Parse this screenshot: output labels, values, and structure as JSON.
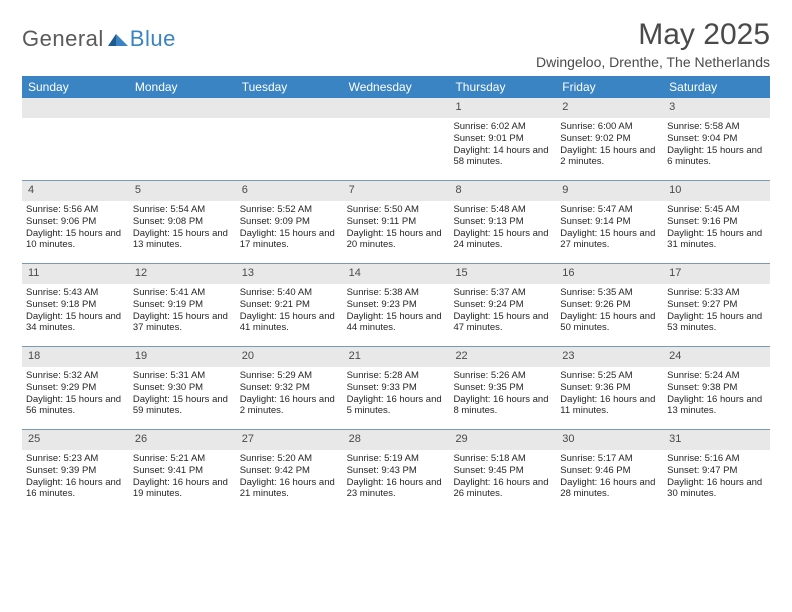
{
  "logo": {
    "word1": "General",
    "word2": "Blue"
  },
  "title": "May 2025",
  "location": "Dwingeloo, Drenthe, The Netherlands",
  "colors": {
    "accent": "#3a84c3",
    "header_text": "#ffffff",
    "daynum_bg": "#e8e8e8",
    "grid_border": "#7a99b3",
    "body_text": "#262626",
    "title_text": "#4a4a4a"
  },
  "dow": [
    "Sunday",
    "Monday",
    "Tuesday",
    "Wednesday",
    "Thursday",
    "Friday",
    "Saturday"
  ],
  "weeks": [
    [
      {
        "n": "",
        "empty": true
      },
      {
        "n": "",
        "empty": true
      },
      {
        "n": "",
        "empty": true
      },
      {
        "n": "",
        "empty": true
      },
      {
        "n": "1",
        "sunrise": "6:02 AM",
        "sunset": "9:01 PM",
        "daylight": "14 hours and 58 minutes."
      },
      {
        "n": "2",
        "sunrise": "6:00 AM",
        "sunset": "9:02 PM",
        "daylight": "15 hours and 2 minutes."
      },
      {
        "n": "3",
        "sunrise": "5:58 AM",
        "sunset": "9:04 PM",
        "daylight": "15 hours and 6 minutes."
      }
    ],
    [
      {
        "n": "4",
        "sunrise": "5:56 AM",
        "sunset": "9:06 PM",
        "daylight": "15 hours and 10 minutes."
      },
      {
        "n": "5",
        "sunrise": "5:54 AM",
        "sunset": "9:08 PM",
        "daylight": "15 hours and 13 minutes."
      },
      {
        "n": "6",
        "sunrise": "5:52 AM",
        "sunset": "9:09 PM",
        "daylight": "15 hours and 17 minutes."
      },
      {
        "n": "7",
        "sunrise": "5:50 AM",
        "sunset": "9:11 PM",
        "daylight": "15 hours and 20 minutes."
      },
      {
        "n": "8",
        "sunrise": "5:48 AM",
        "sunset": "9:13 PM",
        "daylight": "15 hours and 24 minutes."
      },
      {
        "n": "9",
        "sunrise": "5:47 AM",
        "sunset": "9:14 PM",
        "daylight": "15 hours and 27 minutes."
      },
      {
        "n": "10",
        "sunrise": "5:45 AM",
        "sunset": "9:16 PM",
        "daylight": "15 hours and 31 minutes."
      }
    ],
    [
      {
        "n": "11",
        "sunrise": "5:43 AM",
        "sunset": "9:18 PM",
        "daylight": "15 hours and 34 minutes."
      },
      {
        "n": "12",
        "sunrise": "5:41 AM",
        "sunset": "9:19 PM",
        "daylight": "15 hours and 37 minutes."
      },
      {
        "n": "13",
        "sunrise": "5:40 AM",
        "sunset": "9:21 PM",
        "daylight": "15 hours and 41 minutes."
      },
      {
        "n": "14",
        "sunrise": "5:38 AM",
        "sunset": "9:23 PM",
        "daylight": "15 hours and 44 minutes."
      },
      {
        "n": "15",
        "sunrise": "5:37 AM",
        "sunset": "9:24 PM",
        "daylight": "15 hours and 47 minutes."
      },
      {
        "n": "16",
        "sunrise": "5:35 AM",
        "sunset": "9:26 PM",
        "daylight": "15 hours and 50 minutes."
      },
      {
        "n": "17",
        "sunrise": "5:33 AM",
        "sunset": "9:27 PM",
        "daylight": "15 hours and 53 minutes."
      }
    ],
    [
      {
        "n": "18",
        "sunrise": "5:32 AM",
        "sunset": "9:29 PM",
        "daylight": "15 hours and 56 minutes."
      },
      {
        "n": "19",
        "sunrise": "5:31 AM",
        "sunset": "9:30 PM",
        "daylight": "15 hours and 59 minutes."
      },
      {
        "n": "20",
        "sunrise": "5:29 AM",
        "sunset": "9:32 PM",
        "daylight": "16 hours and 2 minutes."
      },
      {
        "n": "21",
        "sunrise": "5:28 AM",
        "sunset": "9:33 PM",
        "daylight": "16 hours and 5 minutes."
      },
      {
        "n": "22",
        "sunrise": "5:26 AM",
        "sunset": "9:35 PM",
        "daylight": "16 hours and 8 minutes."
      },
      {
        "n": "23",
        "sunrise": "5:25 AM",
        "sunset": "9:36 PM",
        "daylight": "16 hours and 11 minutes."
      },
      {
        "n": "24",
        "sunrise": "5:24 AM",
        "sunset": "9:38 PM",
        "daylight": "16 hours and 13 minutes."
      }
    ],
    [
      {
        "n": "25",
        "sunrise": "5:23 AM",
        "sunset": "9:39 PM",
        "daylight": "16 hours and 16 minutes."
      },
      {
        "n": "26",
        "sunrise": "5:21 AM",
        "sunset": "9:41 PM",
        "daylight": "16 hours and 19 minutes."
      },
      {
        "n": "27",
        "sunrise": "5:20 AM",
        "sunset": "9:42 PM",
        "daylight": "16 hours and 21 minutes."
      },
      {
        "n": "28",
        "sunrise": "5:19 AM",
        "sunset": "9:43 PM",
        "daylight": "16 hours and 23 minutes."
      },
      {
        "n": "29",
        "sunrise": "5:18 AM",
        "sunset": "9:45 PM",
        "daylight": "16 hours and 26 minutes."
      },
      {
        "n": "30",
        "sunrise": "5:17 AM",
        "sunset": "9:46 PM",
        "daylight": "16 hours and 28 minutes."
      },
      {
        "n": "31",
        "sunrise": "5:16 AM",
        "sunset": "9:47 PM",
        "daylight": "16 hours and 30 minutes."
      }
    ]
  ],
  "labels": {
    "sunrise": "Sunrise: ",
    "sunset": "Sunset: ",
    "daylight": "Daylight: "
  }
}
